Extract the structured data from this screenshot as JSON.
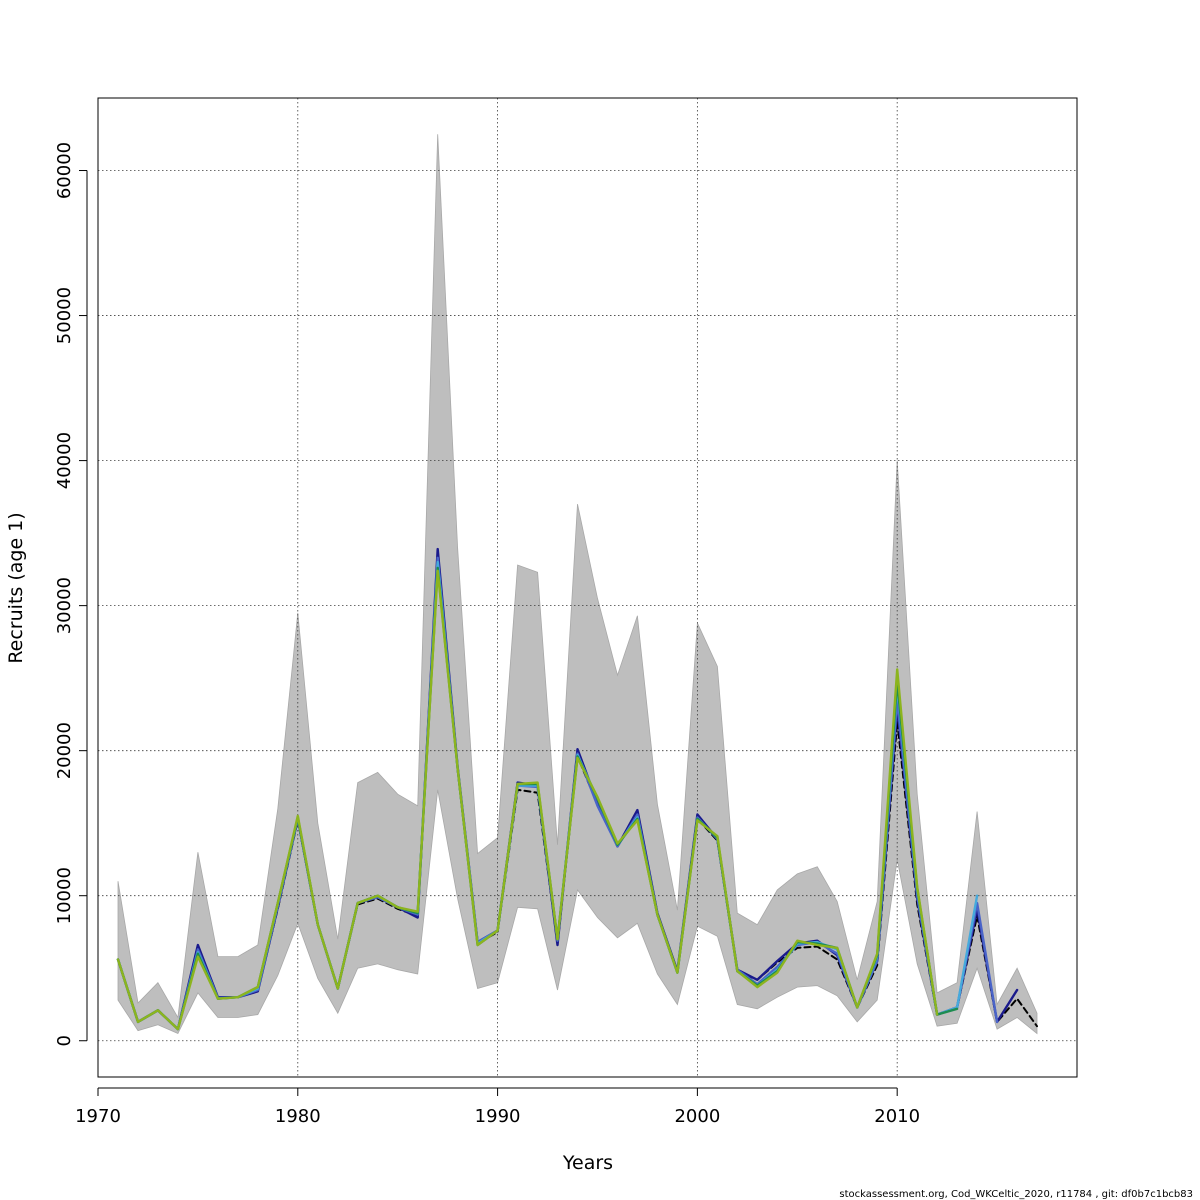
{
  "chart_data": {
    "type": "line",
    "xlabel": "Years",
    "ylabel": "Recruits (age 1)",
    "footer": "stockassessment.org, Cod_WKCeltic_2020, r11784 , git: df0b7c1bcb83",
    "xlim": [
      1970,
      2019
    ],
    "ylim": [
      -2500,
      65000
    ],
    "x_ticks": [
      1970,
      1980,
      1990,
      2000,
      2010
    ],
    "y_ticks": [
      0,
      10000,
      20000,
      30000,
      40000,
      50000,
      60000
    ],
    "grid": true,
    "years": [
      1971,
      1972,
      1973,
      1974,
      1975,
      1976,
      1977,
      1978,
      1979,
      1980,
      1981,
      1982,
      1983,
      1984,
      1985,
      1986,
      1987,
      1988,
      1989,
      1990,
      1991,
      1992,
      1993,
      1994,
      1995,
      1996,
      1997,
      1998,
      1999,
      2000,
      2001,
      2002,
      2003,
      2004,
      2005,
      2006,
      2007,
      2008,
      2009,
      2010,
      2011,
      2012,
      2013,
      2014,
      2015,
      2016,
      2017
    ],
    "confidence_band": {
      "color": "#bebebe",
      "upper": [
        11000,
        2600,
        4000,
        1600,
        13000,
        5800,
        5800,
        6600,
        16000,
        29500,
        15000,
        7000,
        17800,
        18500,
        17000,
        16200,
        62500,
        34000,
        12900,
        14000,
        32800,
        32300,
        13500,
        37000,
        30500,
        25200,
        29300,
        16300,
        9000,
        28800,
        25800,
        8800,
        8000,
        10400,
        11500,
        12000,
        9600,
        4200,
        9600,
        40000,
        17000,
        3300,
        4000,
        15800,
        2500,
        5000,
        1900
      ],
      "lower": [
        2800,
        700,
        1100,
        500,
        3300,
        1600,
        1600,
        1800,
        4500,
        8100,
        4300,
        1900,
        5000,
        5300,
        4900,
        4600,
        17300,
        9800,
        3600,
        4000,
        9200,
        9100,
        3500,
        10400,
        8500,
        7100,
        8100,
        4600,
        2500,
        7900,
        7200,
        2500,
        2200,
        3000,
        3700,
        3800,
        3100,
        1300,
        2800,
        12500,
        5300,
        1000,
        1200,
        5000,
        800,
        1600,
        500
      ]
    },
    "series": [
      {
        "color": "#000000",
        "dashed": true,
        "values": [
          5600,
          1300,
          2100,
          800,
          6400,
          2900,
          3000,
          3500,
          9100,
          15200,
          8000,
          3600,
          9400,
          9800,
          9100,
          8600,
          33500,
          18700,
          6700,
          7500,
          17300,
          17100,
          6700,
          19600,
          16300,
          13400,
          15600,
          8700,
          4700,
          15300,
          13800,
          4800,
          4200,
          5400,
          6400,
          6500,
          5600,
          2300,
          5200,
          22000,
          9400,
          1800,
          2300,
          8600,
          1300,
          2900,
          1000
        ]
      },
      {
        "color": "#1a1a8c",
        "dashed": false,
        "values": [
          5600,
          1300,
          2100,
          800,
          6600,
          3000,
          3000,
          3400,
          9200,
          15300,
          8000,
          3600,
          9500,
          9900,
          9200,
          8500,
          33900,
          18900,
          6800,
          7600,
          17800,
          17600,
          6600,
          20100,
          16400,
          13400,
          15900,
          8800,
          4800,
          15600,
          13900,
          4900,
          4200,
          5500,
          6700,
          6900,
          5900,
          2300,
          5500,
          23000,
          9800,
          1800,
          2300,
          9100,
          1300,
          3500
        ]
      },
      {
        "color": "#4a64c8",
        "dashed": false,
        "values": [
          5600,
          1300,
          2100,
          800,
          6300,
          2950,
          3000,
          3500,
          9300,
          15300,
          8000,
          3600,
          9500,
          9900,
          9200,
          8700,
          33300,
          18800,
          6800,
          7600,
          17600,
          17500,
          6900,
          19800,
          16200,
          13400,
          15600,
          8700,
          4700,
          15400,
          13900,
          4900,
          3900,
          5100,
          6600,
          6800,
          6000,
          2300,
          5500,
          23500,
          10000,
          1800,
          2300,
          9500,
          1300
        ]
      },
      {
        "color": "#46aadc",
        "dashed": false,
        "values": [
          5600,
          1300,
          2100,
          800,
          6100,
          2900,
          3000,
          3600,
          9400,
          15400,
          8000,
          3600,
          9500,
          10000,
          9200,
          8800,
          33000,
          18800,
          6700,
          7600,
          17600,
          17600,
          7000,
          19700,
          16700,
          13500,
          15400,
          8700,
          4700,
          15300,
          14000,
          4800,
          3800,
          4900,
          6700,
          6800,
          6300,
          2300,
          5800,
          24500,
          10400,
          1800,
          2300,
          10000
        ]
      },
      {
        "color": "#1e8c50",
        "dashed": false,
        "values": [
          5600,
          1300,
          2100,
          800,
          6000,
          2900,
          3000,
          3700,
          9500,
          15400,
          8000,
          3600,
          9500,
          10000,
          9200,
          8800,
          32600,
          18800,
          6600,
          7600,
          17700,
          17700,
          7000,
          19600,
          16700,
          13500,
          15300,
          8700,
          4700,
          15300,
          14000,
          4800,
          3800,
          4800,
          6800,
          6700,
          6400,
          2300,
          5900,
          24800,
          10500,
          1800,
          2200
        ]
      },
      {
        "color": "#8cb41e",
        "dashed": false,
        "values": [
          5600,
          1300,
          2100,
          800,
          5800,
          2900,
          3000,
          3700,
          9500,
          15500,
          8000,
          3600,
          9500,
          10000,
          9200,
          8900,
          32400,
          18800,
          6600,
          7600,
          17700,
          17800,
          7000,
          19500,
          16800,
          13600,
          15200,
          8700,
          4700,
          15200,
          14100,
          4800,
          3700,
          4700,
          6900,
          6600,
          6400,
          2300,
          6000,
          25600,
          10600,
          1800
        ]
      }
    ]
  }
}
